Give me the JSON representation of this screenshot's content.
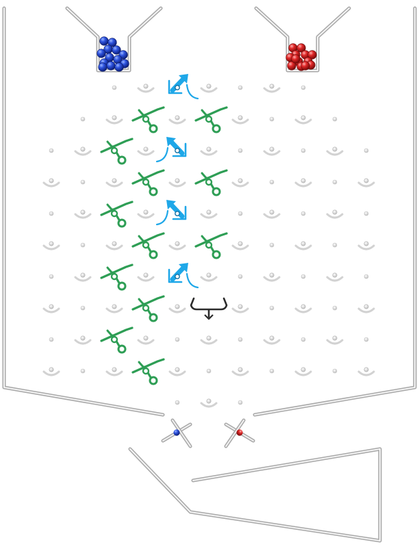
{
  "game": {
    "name": "",
    "colors": {
      "background": "#ffffff",
      "wall": "#a8a8a8",
      "wall_highlight": "#f4f4f4",
      "peg": "#c9c9c9",
      "slot": "#d2d2d2",
      "ramp": "#2e9e55",
      "crossover": "#1ea7e8",
      "interceptor": "#2b2b2b",
      "marble_blue": "#1f3fc4",
      "marble_red": "#d11f1f"
    },
    "hoppers": [
      {
        "id": "blue",
        "marble_color": "blue",
        "marble_count": 13
      },
      {
        "id": "red",
        "marble_color": "red",
        "marble_count": 13
      }
    ],
    "levers": [
      {
        "side": "left",
        "marble": "blue"
      },
      {
        "side": "right",
        "marble": "red"
      }
    ],
    "ramps": [
      {
        "col": 3,
        "row": 1,
        "facing": "left"
      },
      {
        "col": 5,
        "row": 1,
        "facing": "left"
      },
      {
        "col": 2,
        "row": 2,
        "facing": "left"
      },
      {
        "col": 3,
        "row": 3,
        "facing": "left"
      },
      {
        "col": 5,
        "row": 3,
        "facing": "left"
      },
      {
        "col": 2,
        "row": 4,
        "facing": "left"
      },
      {
        "col": 3,
        "row": 5,
        "facing": "left"
      },
      {
        "col": 5,
        "row": 5,
        "facing": "left"
      },
      {
        "col": 2,
        "row": 6,
        "facing": "left"
      },
      {
        "col": 3,
        "row": 7,
        "facing": "left"
      },
      {
        "col": 2,
        "row": 8,
        "facing": "left"
      },
      {
        "col": 3,
        "row": 9,
        "facing": "left"
      }
    ],
    "crossovers": [
      {
        "col": 4,
        "row": 0,
        "state": "right"
      },
      {
        "col": 4,
        "row": 2,
        "state": "left"
      },
      {
        "col": 4,
        "row": 4,
        "state": "left"
      },
      {
        "col": 4,
        "row": 6,
        "state": "right"
      }
    ],
    "interceptors": [
      {
        "col": 5,
        "row": 7
      }
    ]
  }
}
